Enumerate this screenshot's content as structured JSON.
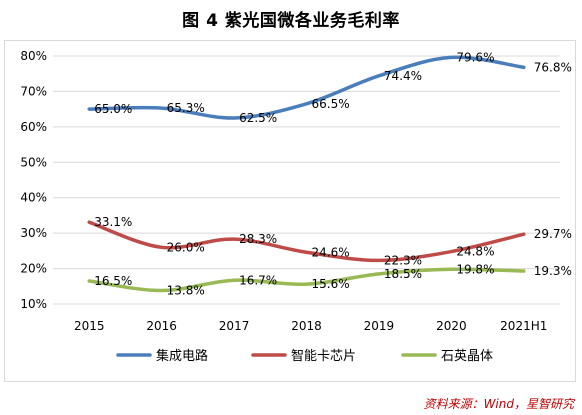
{
  "title": "图 4  紫光国微各业务毛利率",
  "source": "资料来源：Wind，星智研究",
  "colors": {
    "series": [
      "#4a7ebb",
      "#be4b48",
      "#98b954"
    ],
    "grid": "#d9d9d9",
    "axis_text": "#000000"
  },
  "chart_data": {
    "type": "line",
    "categories": [
      "2015",
      "2016",
      "2017",
      "2018",
      "2019",
      "2020",
      "2021H1"
    ],
    "ylim": [
      10,
      80
    ],
    "yticks": [
      "10%",
      "20%",
      "30%",
      "40%",
      "50%",
      "60%",
      "70%",
      "80%"
    ],
    "grid": true,
    "legend": "bottom",
    "series": [
      {
        "name": "集成电路",
        "values": [
          65.0,
          65.3,
          62.5,
          66.5,
          74.4,
          79.6,
          76.8
        ],
        "labels": [
          "65.0%",
          "65.3%",
          "62.5%",
          "66.5%",
          "74.4%",
          "79.6%",
          "76.8%"
        ]
      },
      {
        "name": "智能卡芯片",
        "values": [
          33.1,
          26.0,
          28.3,
          24.6,
          22.3,
          24.8,
          29.7
        ],
        "labels": [
          "33.1%",
          "26.0%",
          "28.3%",
          "24.6%",
          "22.3%",
          "24.8%",
          "29.7%"
        ]
      },
      {
        "name": "石英晶体",
        "values": [
          16.5,
          13.8,
          16.7,
          15.6,
          18.5,
          19.8,
          19.3
        ],
        "labels": [
          "16.5%",
          "13.8%",
          "16.7%",
          "15.6%",
          "18.5%",
          "19.8%",
          "19.3%"
        ]
      }
    ]
  }
}
